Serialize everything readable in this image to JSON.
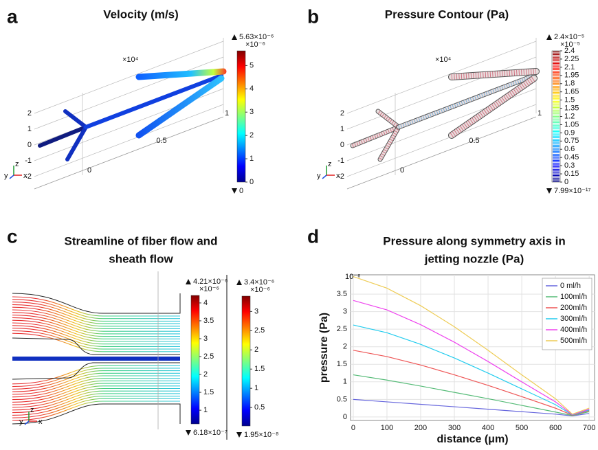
{
  "chart_data": [
    {
      "type": "surface",
      "panel": "a",
      "title": "Velocity (m/s)",
      "scale_label": "×10⁴",
      "z_ticks": [
        2,
        1,
        0,
        -1,
        -2
      ],
      "x_ticks": [
        0,
        0.5,
        1
      ],
      "triad": [
        "z",
        "y",
        "x"
      ],
      "colorbars": [
        {
          "max": {
            "value": 5.63,
            "label": "5.63×10⁻⁶"
          },
          "min": 0,
          "exponent": "×10⁻⁶",
          "ticks": [
            0,
            1,
            2,
            3,
            4,
            5
          ]
        }
      ]
    },
    {
      "type": "contour",
      "panel": "b",
      "title": "Pressure Contour (Pa)",
      "scale_label": "×10⁴",
      "z_ticks": [
        2,
        1,
        0,
        -1,
        -2
      ],
      "x_ticks": [
        0,
        0.5,
        1
      ],
      "triad": [
        "z",
        "y",
        "x"
      ],
      "colorbars": [
        {
          "max": {
            "value": 2.4,
            "label": "2.4×10⁻⁵"
          },
          "min": {
            "value": 7.99e-12,
            "label": "7.99×10⁻¹⁷"
          },
          "exponent": "×10⁻⁵",
          "ticks": [
            2.4,
            2.25,
            2.1,
            1.95,
            1.8,
            1.65,
            1.5,
            1.35,
            1.2,
            1.05,
            0.9,
            0.75,
            0.6,
            0.45,
            0.3,
            0.15,
            0
          ]
        }
      ]
    },
    {
      "type": "streamline",
      "panel": "c",
      "title": [
        "Streamline of fiber flow and",
        "sheath flow"
      ],
      "triad": [
        "z",
        "y",
        "x"
      ],
      "colorbars": [
        {
          "max": {
            "value": 4.21,
            "label": "4.21×10⁻⁶"
          },
          "min": {
            "value": 0.618,
            "label": "6.18×10⁻⁷"
          },
          "exponent": "×10⁻⁶",
          "ticks": [
            4,
            3.5,
            3,
            2.5,
            2,
            1.5,
            1
          ]
        },
        {
          "max": {
            "value": 3.4,
            "label": "3.4×10⁻⁶"
          },
          "min": {
            "value": 0.0195,
            "label": "1.95×10⁻⁸"
          },
          "exponent": "×10⁻⁶",
          "ticks": [
            3,
            2.5,
            2,
            1.5,
            1,
            0.5
          ]
        }
      ]
    },
    {
      "type": "line",
      "panel": "d",
      "title": [
        "Pressure along symmetry axis in",
        "jetting nozzle (Pa)"
      ],
      "x_label": "distance (μm)",
      "y_label": "pressure (Pa)",
      "y_exponent": "10⁻⁶",
      "x": [
        0,
        100,
        200,
        300,
        400,
        500,
        600,
        650,
        700
      ],
      "series": [
        {
          "name": "0 ml/h",
          "color": "#6666dd",
          "values": [
            0.5,
            0.43,
            0.36,
            0.29,
            0.22,
            0.15,
            0.08,
            0.03,
            0.1
          ]
        },
        {
          "name": "100ml/h",
          "color": "#55bb77",
          "values": [
            1.2,
            1.05,
            0.88,
            0.7,
            0.52,
            0.33,
            0.14,
            0.04,
            0.15
          ]
        },
        {
          "name": "200ml/h",
          "color": "#ee5555",
          "values": [
            1.9,
            1.72,
            1.48,
            1.2,
            0.9,
            0.58,
            0.25,
            0.05,
            0.18
          ]
        },
        {
          "name": "300ml/h",
          "color": "#22ccee",
          "values": [
            2.62,
            2.4,
            2.07,
            1.68,
            1.25,
            0.8,
            0.35,
            0.06,
            0.2
          ]
        },
        {
          "name": "400ml/h",
          "color": "#ee44ee",
          "values": [
            3.32,
            3.05,
            2.63,
            2.13,
            1.58,
            1.0,
            0.43,
            0.07,
            0.22
          ]
        },
        {
          "name": "500ml/h",
          "color": "#eecc55",
          "values": [
            4.0,
            3.67,
            3.17,
            2.57,
            1.9,
            1.2,
            0.52,
            0.08,
            0.25
          ]
        }
      ],
      "xlim": [
        -8,
        716
      ],
      "ylim": [
        -0.1,
        4.05
      ],
      "xticks": [
        0,
        100,
        200,
        300,
        400,
        500,
        600,
        700
      ],
      "yticks": [
        0,
        0.5,
        1,
        1.5,
        2,
        2.5,
        3,
        3.5
      ],
      "grid": true,
      "legend": "upper right"
    }
  ]
}
